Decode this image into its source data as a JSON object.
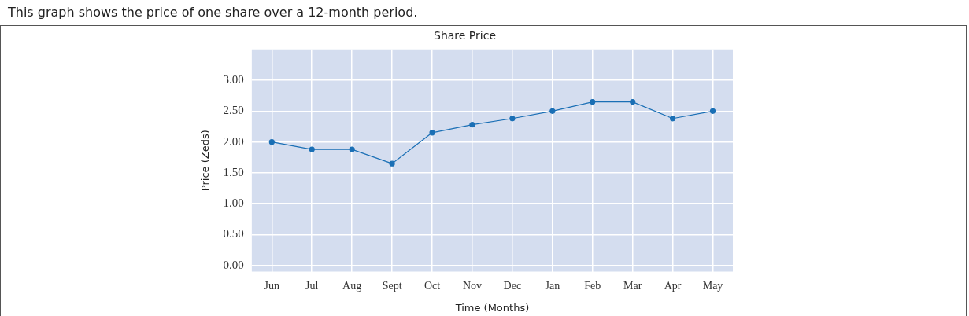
{
  "chart_data": {
    "type": "line",
    "title": "Share Price",
    "xlabel": "Time (Months)",
    "ylabel": "Price (Zeds)",
    "annotations": [
      "This graph shows the price of one share over a 12-month period."
    ],
    "categories": [
      "Jun",
      "Jul",
      "Aug",
      "Sept",
      "Oct",
      "Nov",
      "Dec",
      "Jan",
      "Feb",
      "Mar",
      "Apr",
      "May"
    ],
    "series": [
      {
        "color": "#1a6fb5",
        "values": [
          2.0,
          1.88,
          1.88,
          1.65,
          2.15,
          2.28,
          2.38,
          2.5,
          2.65,
          2.65,
          2.38,
          2.5
        ]
      }
    ],
    "ylim": [
      -0.1,
      3.5
    ],
    "yticks": [
      {
        "value": 0,
        "label": "0.00"
      },
      {
        "value": 0.5,
        "label": "0.50"
      },
      {
        "value": 1,
        "label": "1.00"
      },
      {
        "value": 1.5,
        "label": "1.50"
      },
      {
        "value": 2,
        "label": "2.00"
      },
      {
        "value": 2.5,
        "label": "2.50"
      },
      {
        "value": 3,
        "label": "3.00"
      }
    ],
    "grid": true,
    "legend": false,
    "marker": "circle",
    "line_style": "solid"
  }
}
